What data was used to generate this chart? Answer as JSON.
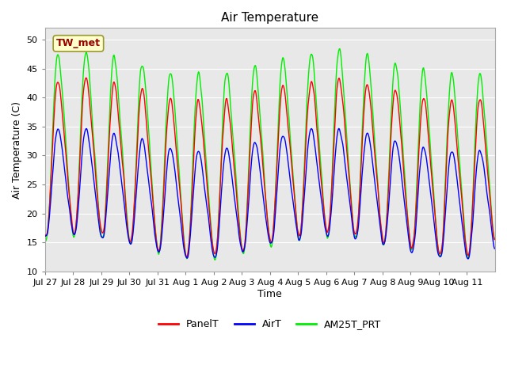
{
  "title": "Air Temperature",
  "ylabel": "Air Temperature (C)",
  "xlabel": "Time",
  "ylim": [
    10,
    52
  ],
  "yticks": [
    10,
    15,
    20,
    25,
    30,
    35,
    40,
    45,
    50
  ],
  "annotation_text": "TW_met",
  "plot_bg_color": "#e8e8e8",
  "fig_bg_color": "#ffffff",
  "grid_color": "#ffffff",
  "line_colors": {
    "PanelT": "#ff0000",
    "AirT": "#0000ff",
    "AM25T_PRT": "#00ee00"
  },
  "line_width": 1.0,
  "tick_labels": [
    "Jul 27",
    "Jul 28",
    "Jul 29",
    "Jul 30",
    "Jul 31",
    "Aug 1",
    "Aug 2",
    "Aug 3",
    "Aug 4",
    "Aug 5",
    "Aug 6",
    "Aug 7",
    "Aug 8",
    "Aug 9",
    "Aug 10",
    "Aug 11"
  ],
  "num_days": 16,
  "seed": 77,
  "title_fontsize": 11,
  "label_fontsize": 9,
  "tick_fontsize": 8
}
